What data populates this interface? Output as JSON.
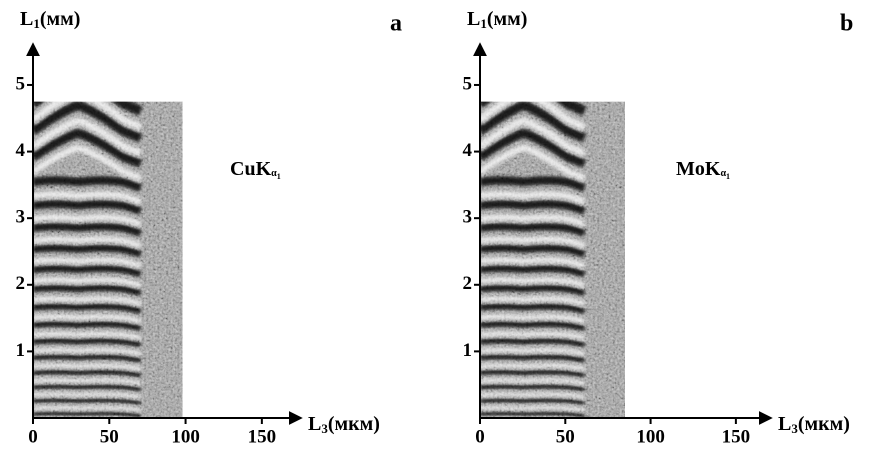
{
  "chart_data": [
    {
      "type": "image",
      "panel_label": "a",
      "annotation": {
        "main": "CuK",
        "sub": "α",
        "subsub": "1"
      },
      "x_label": {
        "main": "L",
        "sub": "3",
        "unit": "(мкм)"
      },
      "y_label": {
        "main": "L",
        "sub": "1",
        "unit": "(мм)"
      },
      "xlim": [
        0,
        175
      ],
      "ylim": [
        0,
        5.6
      ],
      "xticks": [
        0,
        50,
        100,
        150
      ],
      "yticks": [
        1,
        2,
        3,
        4,
        5
      ],
      "image_extent": {
        "x": [
          0,
          98
        ],
        "y": [
          0,
          4.75
        ]
      }
    },
    {
      "type": "image",
      "panel_label": "b",
      "annotation": {
        "main": "MoK",
        "sub": "α",
        "subsub": "1"
      },
      "x_label": {
        "main": "L",
        "sub": "3",
        "unit": "(мкм)"
      },
      "y_label": {
        "main": "L",
        "sub": "1",
        "unit": "(мм)"
      },
      "xlim": [
        0,
        170
      ],
      "ylim": [
        0,
        5.6
      ],
      "xticks": [
        0,
        50,
        100,
        150
      ],
      "yticks": [
        1,
        2,
        3,
        4,
        5
      ],
      "image_extent": {
        "x": [
          0,
          85
        ],
        "y": [
          0,
          4.75
        ]
      }
    }
  ]
}
